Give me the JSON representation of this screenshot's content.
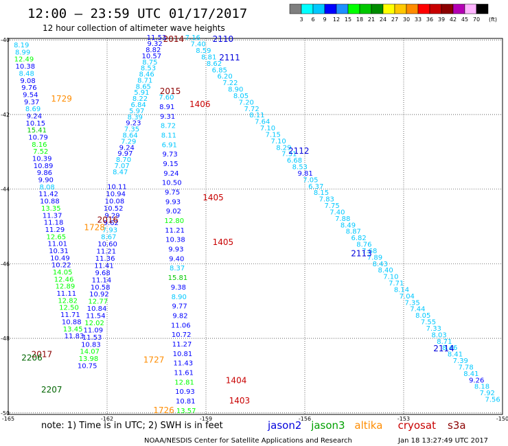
{
  "header": {
    "title": "12:00 – 23:59 UTC 01/17/2017",
    "subtitle": "12 hour collection of altimeter wave heights"
  },
  "colorbar": {
    "unit": "(ft)",
    "colors": [
      "#7f7f7f",
      "#00ffff",
      "#00c8ff",
      "#0000ff",
      "#1e90ff",
      "#00ff00",
      "#00c800",
      "#008c00",
      "#ffff00",
      "#ffc800",
      "#ff8c00",
      "#ff0000",
      "#c80000",
      "#8b0000",
      "#b400b4",
      "#ffb4ff",
      "#000000"
    ],
    "labels": [
      "3",
      "6",
      "9",
      "12",
      "15",
      "18",
      "21",
      "24",
      "27",
      "30",
      "33",
      "36",
      "39",
      "42",
      "45",
      "70"
    ]
  },
  "axes": {
    "lon_ticks": [
      "-165",
      "-162",
      "-159",
      "-156",
      "-153",
      "-150"
    ],
    "lat_ticks": [
      "-40",
      "-42",
      "-44",
      "-46",
      "-48",
      "-50"
    ]
  },
  "note": "note:  1) Time is in UTC;  2) SWH is in feet",
  "legend": [
    {
      "name": "jason2",
      "color": "#0000dc"
    },
    {
      "name": "jason3",
      "color": "#00a000"
    },
    {
      "name": "altika",
      "color": "#ff8c00"
    },
    {
      "name": "cryosat",
      "color": "#c80000"
    },
    {
      "name": "s3a",
      "color": "#8b0000"
    }
  ],
  "credit": "NOAA/NESDIS Center for Satellite Applications and Research",
  "timestamp": "Jan 18 13:27:49 UTC 2017",
  "tracks": [
    {
      "id": "t1729",
      "color": "#000096",
      "lonStart": -164.6,
      "lonEnd": -163.0,
      "latStart": -40.2,
      "latEnd": -48.0,
      "values": [
        8.19,
        8.99,
        12.49,
        10.38,
        8.48,
        9.08,
        9.76,
        9.54,
        9.37,
        8.69,
        9.24,
        10.15,
        15.41,
        10.79,
        8.16,
        7.52,
        10.39,
        10.89,
        9.86,
        9.9,
        8.08,
        11.42,
        10.88,
        13.35,
        11.37,
        11.18,
        11.29,
        12.65,
        11.01,
        10.31,
        10.49,
        10.22,
        14.05,
        12.46,
        12.89,
        11.11,
        12.82,
        12.5,
        11.71,
        10.88,
        13.45,
        11.83
      ],
      "pointColors": [
        "#00c8ff",
        "#00c8ff",
        "#00ff00",
        "#0000ff",
        "#00c8ff",
        "#0000ff",
        "#0000ff",
        "#0000ff",
        "#0000ff",
        "#00c8ff",
        "#0000ff",
        "#0000ff",
        "#00c800",
        "#0000ff",
        "#00ff00",
        "#00ff00",
        "#0000ff",
        "#0000ff",
        "#0000ff",
        "#0000ff",
        "#00c8ff",
        "#0000ff",
        "#0000ff",
        "#00ff00",
        "#0000ff",
        "#0000ff",
        "#0000ff",
        "#00ff00",
        "#0000ff",
        "#0000ff",
        "#0000ff",
        "#0000ff",
        "#00ff00",
        "#00ff00",
        "#00ff00",
        "#0000ff",
        "#00ff00",
        "#00ff00",
        "#0000ff",
        "#0000ff",
        "#00ff00",
        "#0000ff"
      ]
    },
    {
      "id": "t1728",
      "color": "#0000c8",
      "lonStart": -161.7,
      "lonEnd": -162.6,
      "latStart": -44.0,
      "latEnd": -48.8,
      "values": [
        10.11,
        10.94,
        10.08,
        10.52,
        9.29,
        9.62,
        7.93,
        8.67,
        10.6,
        11.21,
        11.36,
        11.41,
        9.68,
        11.14,
        10.58,
        10.92,
        12.77,
        10.84,
        11.54,
        12.02,
        11.09,
        11.53,
        10.83,
        14.07,
        13.98,
        10.75
      ],
      "pointColors": [
        "#0000ff",
        "#0000ff",
        "#0000ff",
        "#0000ff",
        "#0000ff",
        "#0000ff",
        "#00c8ff",
        "#00c8ff",
        "#0000ff",
        "#0000ff",
        "#0000ff",
        "#0000ff",
        "#0000ff",
        "#0000ff",
        "#0000ff",
        "#0000ff",
        "#00ff00",
        "#0000ff",
        "#0000ff",
        "#00ff00",
        "#0000ff",
        "#0000ff",
        "#0000ff",
        "#00ff00",
        "#00ff00",
        "#0000ff"
      ]
    },
    {
      "id": "t2015",
      "color": "#0000c8",
      "lonStart": -160.5,
      "lonEnd": -161.6,
      "latStart": -40.0,
      "latEnd": -43.6,
      "values": [
        11.53,
        9.32,
        8.82,
        10.57,
        8.75,
        8.53,
        8.46,
        8.71,
        8.65,
        5.91,
        8.22,
        6.84,
        5.97,
        8.39,
        9.23,
        7.35,
        8.64,
        7.29,
        9.24,
        9.97,
        8.7,
        7.07,
        8.47
      ],
      "pointColors": [
        "#0000ff",
        "#0000ff",
        "#0000ff",
        "#0000ff",
        "#00c8ff",
        "#00c8ff",
        "#00c8ff",
        "#00c8ff",
        "#00c8ff",
        "#00c8ff",
        "#00c8ff",
        "#00c8ff",
        "#00c8ff",
        "#00c8ff",
        "#0000ff",
        "#00c8ff",
        "#00c8ff",
        "#00c8ff",
        "#0000ff",
        "#0000ff",
        "#00c8ff",
        "#00c8ff",
        "#00c8ff"
      ]
    },
    {
      "id": "t1405",
      "color": "#0000c8",
      "lonStart": -160.2,
      "lonEnd": -159.6,
      "latStart": -41.6,
      "latEnd": -50.0,
      "values": [
        7.6,
        8.91,
        9.31,
        8.72,
        8.11,
        6.91,
        9.73,
        9.15,
        9.24,
        10.5,
        9.75,
        9.93,
        9.02,
        12.8,
        11.21,
        10.38,
        9.93,
        9.4,
        8.37,
        15.81,
        9.38,
        8.9,
        9.77,
        9.82,
        11.06,
        10.72,
        11.27,
        10.81,
        11.43,
        11.61,
        12.81,
        10.93,
        10.81,
        13.57
      ],
      "pointColors": [
        "#00c8ff",
        "#0000ff",
        "#0000ff",
        "#00c8ff",
        "#00c8ff",
        "#00c8ff",
        "#0000ff",
        "#0000ff",
        "#0000ff",
        "#0000ff",
        "#0000ff",
        "#0000ff",
        "#0000ff",
        "#00ff00",
        "#0000ff",
        "#0000ff",
        "#0000ff",
        "#0000ff",
        "#00c8ff",
        "#00c800",
        "#0000ff",
        "#00c8ff",
        "#0000ff",
        "#0000ff",
        "#0000ff",
        "#0000ff",
        "#0000ff",
        "#0000ff",
        "#0000ff",
        "#0000ff",
        "#00ff00",
        "#0000ff",
        "#0000ff",
        "#00ff00"
      ]
    },
    {
      "id": "t2110",
      "color": "#00c8ff",
      "lonStart": -159.4,
      "lonEnd": -150.3,
      "latStart": -40.0,
      "latEnd": -49.7,
      "values": [
        7.16,
        7.4,
        8.59,
        8.81,
        8.62,
        6.85,
        6.2,
        7.22,
        8.9,
        8.05,
        7.2,
        7.72,
        8.11,
        7.64,
        7.1,
        7.15,
        7.1,
        8.29,
        7.31,
        6.68,
        8.53,
        9.81,
        7.05,
        6.37,
        8.15,
        7.83,
        7.75,
        7.4,
        7.88,
        8.49,
        8.87,
        6.82,
        8.76,
        7.68,
        7.89,
        8.43,
        8.4,
        7.1,
        7.71,
        8.14,
        7.04,
        7.35,
        7.44,
        8.05,
        7.55,
        7.33,
        8.03,
        8.71,
        8.46,
        8.41,
        7.39,
        7.78,
        8.41,
        9.26,
        8.18,
        7.92,
        7.56
      ],
      "pointColors": [
        "#00c8ff",
        "#00c8ff",
        "#00c8ff",
        "#00c8ff",
        "#00c8ff",
        "#00c8ff",
        "#00c8ff",
        "#00c8ff",
        "#00c8ff",
        "#00c8ff",
        "#00c8ff",
        "#00c8ff",
        "#00c8ff",
        "#00c8ff",
        "#00c8ff",
        "#00c8ff",
        "#00c8ff",
        "#00c8ff",
        "#00c8ff",
        "#00c8ff",
        "#00c8ff",
        "#0000ff",
        "#00c8ff",
        "#00c8ff",
        "#00c8ff",
        "#00c8ff",
        "#00c8ff",
        "#00c8ff",
        "#00c8ff",
        "#00c8ff",
        "#00c8ff",
        "#00c8ff",
        "#00c8ff",
        "#00c8ff",
        "#00c8ff",
        "#00c8ff",
        "#00c8ff",
        "#00c8ff",
        "#00c8ff",
        "#00c8ff",
        "#00c8ff",
        "#00c8ff",
        "#00c8ff",
        "#00c8ff",
        "#00c8ff",
        "#00c8ff",
        "#00c8ff",
        "#00c8ff",
        "#00c8ff",
        "#00c8ff",
        "#00c8ff",
        "#00c8ff",
        "#00c8ff",
        "#0000ff",
        "#00c8ff",
        "#00c8ff",
        "#00c8ff"
      ]
    }
  ],
  "pass_labels": [
    {
      "text": "1729",
      "color": "#ff8c00",
      "lon": -163.7,
      "lat": -41.65
    },
    {
      "text": "2014",
      "color": "#8b0000",
      "lon": -160.3,
      "lat": -40.05
    },
    {
      "text": "2110",
      "color": "#0000dc",
      "lon": -158.8,
      "lat": -40.05
    },
    {
      "text": "2111",
      "color": "#0000dc",
      "lon": -158.6,
      "lat": -40.55
    },
    {
      "text": "2015",
      "color": "#8b0000",
      "lon": -160.4,
      "lat": -41.45
    },
    {
      "text": "1406",
      "color": "#c80000",
      "lon": -159.5,
      "lat": -41.8
    },
    {
      "text": "2112",
      "color": "#0000dc",
      "lon": -156.5,
      "lat": -43.05
    },
    {
      "text": "1405",
      "color": "#c80000",
      "lon": -159.1,
      "lat": -44.3
    },
    {
      "text": "2016",
      "color": "#8b0000",
      "lon": -162.3,
      "lat": -44.9
    },
    {
      "text": "1728",
      "color": "#ff8c00",
      "lon": -162.7,
      "lat": -45.1
    },
    {
      "text": "1405",
      "color": "#c80000",
      "lon": -158.8,
      "lat": -45.5
    },
    {
      "text": "2113",
      "color": "#0000dc",
      "lon": -154.6,
      "lat": -45.8
    },
    {
      "text": "2017",
      "color": "#8b0000",
      "lon": -164.3,
      "lat": -48.5
    },
    {
      "text": "2206",
      "color": "#006400",
      "lon": -164.6,
      "lat": -48.6
    },
    {
      "text": "1727",
      "color": "#ff8c00",
      "lon": -160.9,
      "lat": -48.65
    },
    {
      "text": "2114",
      "color": "#0000dc",
      "lon": -152.1,
      "lat": -48.35
    },
    {
      "text": "1404",
      "color": "#c80000",
      "lon": -158.4,
      "lat": -49.2
    },
    {
      "text": "2207",
      "color": "#006400",
      "lon": -164.0,
      "lat": -49.45
    },
    {
      "text": "1403",
      "color": "#c80000",
      "lon": -158.3,
      "lat": -49.75
    },
    {
      "text": "1726",
      "color": "#ff8c00",
      "lon": -160.6,
      "lat": -50.0
    }
  ]
}
